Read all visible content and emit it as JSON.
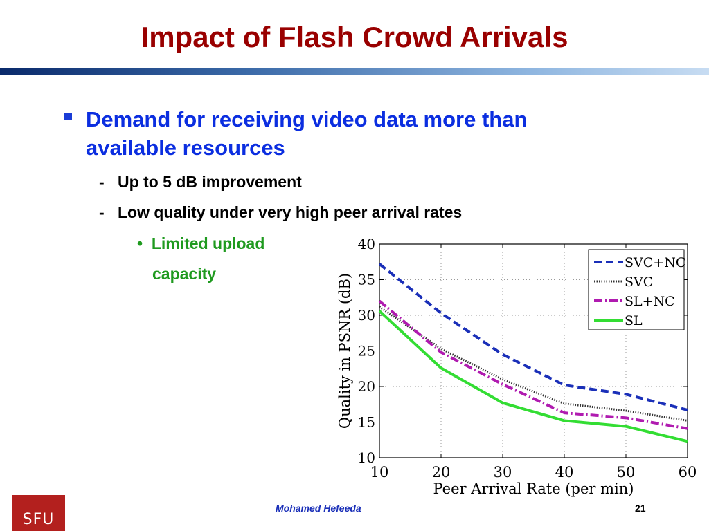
{
  "slide": {
    "title": "Impact of Flash Crowd Arrivals",
    "bullet": "Demand for receiving video data more than available resources",
    "sub_bullets": [
      "Up to 5 dB improvement",
      "Low quality under very high peer arrival rates"
    ],
    "dash": "-",
    "dot": "•",
    "sub_sub_bullet_line1": "Limited upload",
    "sub_sub_bullet_line2": "capacity",
    "footer_author": "Mohamed  Hefeeda",
    "page_number": "21",
    "logo_text": "SFU"
  },
  "colors": {
    "title": "#990000",
    "bullet": "#0b2ee0",
    "subsub": "#1f9a1f",
    "logo": "#b3201e"
  },
  "chart_data": {
    "type": "line",
    "x": [
      10,
      20,
      30,
      40,
      50,
      60
    ],
    "xlabel": "Peer Arrival Rate (per min)",
    "ylabel": "Quality in PSNR (dB)",
    "xlim": [
      10,
      60
    ],
    "ylim": [
      10,
      40
    ],
    "xticks": [
      10,
      20,
      30,
      40,
      50,
      60
    ],
    "yticks": [
      10,
      15,
      20,
      25,
      30,
      35,
      40
    ],
    "grid": true,
    "legend_position": "top-right",
    "series": [
      {
        "name": "SVC+NC",
        "values": [
          37.2,
          30.3,
          24.5,
          20.2,
          18.9,
          16.7
        ],
        "color": "#1a2fb8",
        "style": "dashed"
      },
      {
        "name": "SVC",
        "values": [
          31.2,
          25.3,
          21.0,
          17.6,
          16.6,
          15.2
        ],
        "color": "#333333",
        "style": "dotted"
      },
      {
        "name": "SL+NC",
        "values": [
          32.0,
          24.8,
          20.3,
          16.3,
          15.6,
          14.1
        ],
        "color": "#b01bb0",
        "style": "dashdot"
      },
      {
        "name": "SL",
        "values": [
          30.6,
          22.6,
          17.7,
          15.2,
          14.4,
          12.3
        ],
        "color": "#33dd33",
        "style": "solid"
      }
    ]
  }
}
